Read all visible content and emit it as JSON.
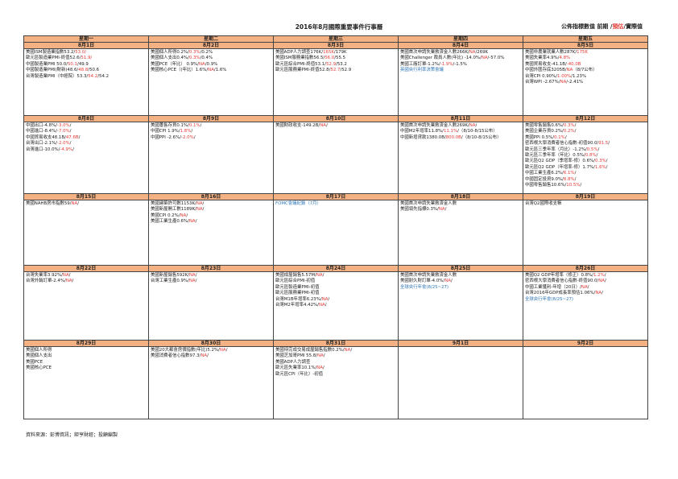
{
  "title": "2016年8月國際重要事件行事曆",
  "legend": {
    "prefix": "公佈指標數值 前期 /",
    "predicted": "預估",
    "suffix": "/實際值"
  },
  "weekdays": [
    "星期一",
    "星期二",
    "星期三",
    "星期四",
    "星期五"
  ],
  "weeks": [
    [
      {
        "date": "8月1日",
        "lines": [
          [
            [
              "美國ISM製造業指數53.2/",
              ""
            ],
            [
              "53.0/",
              "red"
            ]
          ],
          [
            [
              "歐元區製造業PMI-終值52.6/",
              ""
            ],
            [
              "51.9/",
              "red"
            ]
          ],
          [
            [
              "中國製造業PMI 50.0/",
              ""
            ],
            [
              "50.1",
              "red"
            ],
            [
              "/49.9",
              ""
            ]
          ],
          [
            [
              "中國製造業PMI(財新)48.6/",
              ""
            ],
            [
              "48.8",
              "red"
            ],
            [
              "/50.6",
              ""
            ]
          ],
          [
            [
              "台灣製造業PMI（中經院）53.3/",
              ""
            ],
            [
              "54.2",
              "red"
            ],
            [
              "/54.2",
              ""
            ]
          ]
        ]
      },
      {
        "date": "8月2日",
        "lines": [
          [
            [
              "美國個人所得0.2%/",
              ""
            ],
            [
              "0.3%",
              "red"
            ],
            [
              "/0.2%",
              ""
            ]
          ],
          [
            [
              "美國個人支出0.4%/",
              ""
            ],
            [
              "0.3%",
              "red"
            ],
            [
              "/0.4%",
              ""
            ]
          ],
          [
            [
              "美國PCE（年比） 0.9%/",
              ""
            ],
            [
              "NA",
              "red"
            ],
            [
              "/0.9%",
              ""
            ]
          ],
          [
            [
              "美國核心PCE（(年比）1.6%/",
              ""
            ],
            [
              "NA",
              "red"
            ],
            [
              "/1.6%",
              ""
            ]
          ]
        ]
      },
      {
        "date": "8月3日",
        "lines": [
          [
            [
              "美國ADP人力調查176K/",
              ""
            ],
            [
              "165K",
              "red"
            ],
            [
              "/179K",
              ""
            ]
          ],
          [
            [
              "美國ISM服務業指數56.5/",
              ""
            ],
            [
              "56.0",
              "red"
            ],
            [
              "/55.5",
              ""
            ]
          ],
          [
            [
              "歐元區綜合PMI-終值53.1/",
              ""
            ],
            [
              "52.9",
              "red"
            ],
            [
              "/53.2",
              ""
            ]
          ],
          [
            [
              "歐元區服務業PMI-終值52.8/",
              ""
            ],
            [
              "52.7",
              "red"
            ],
            [
              "/52.9",
              ""
            ]
          ]
        ]
      },
      {
        "date": "8月4日",
        "lines": [
          [
            [
              "美國首次申請失業救濟金人數266K/",
              ""
            ],
            [
              "NA",
              "red"
            ],
            [
              "/269K",
              ""
            ]
          ],
          [
            [
              "美國Challenger 裁員人數(年比) -14.0%/",
              ""
            ],
            [
              "NA",
              "red"
            ],
            [
              "/-57.0%",
              ""
            ]
          ],
          [
            [
              "美國工廠訂單-1.2%/",
              ""
            ],
            [
              "-1.9%",
              "red"
            ],
            [
              "/-1.5%",
              ""
            ]
          ],
          [
            [
              "英國央行利率決策會議",
              "blue"
            ]
          ]
        ]
      },
      {
        "date": "8月5日",
        "lines": [
          [
            [
              "美國非農業就業人數287K/",
              ""
            ],
            [
              "175K",
              "red"
            ]
          ],
          [
            [
              "美國失業率4.9%/",
              ""
            ],
            [
              "4.8%",
              "red"
            ]
          ],
          [
            [
              "美國貿易收支-41.1B/",
              ""
            ],
            [
              "-40.0B",
              "red"
            ]
          ],
          [
            [
              "中國外匯存底3205B/",
              ""
            ],
            [
              "NA",
              "red"
            ],
            [
              "（8/7公布）",
              ""
            ]
          ],
          [
            [
              "台灣CPI 0.90%/",
              ""
            ],
            [
              "1.00%",
              "red"
            ],
            [
              "/1.23%",
              ""
            ]
          ],
          [
            [
              "台灣WPI -2.67%/",
              ""
            ],
            [
              "NA",
              "red"
            ],
            [
              "/-2.41%",
              ""
            ]
          ]
        ]
      }
    ],
    [
      {
        "date": "8月8日",
        "lines": [
          [
            [
              "中國出口-4.8%/",
              ""
            ],
            [
              "-3.0%",
              "red"
            ],
            [
              "/",
              ""
            ]
          ],
          [
            [
              "中國進口-8.4%/",
              ""
            ],
            [
              "-7.0%",
              "red"
            ],
            [
              "/",
              ""
            ]
          ],
          [
            [
              "中國貿易收支48.1B/",
              ""
            ],
            [
              "47.6B",
              "red"
            ],
            [
              "/",
              ""
            ]
          ],
          [
            [
              "台灣出口-2.1%/",
              ""
            ],
            [
              "-2.0%",
              "red"
            ],
            [
              "/",
              ""
            ]
          ],
          [
            [
              "台灣進口-10.0%/",
              ""
            ],
            [
              "-4.9%",
              "red"
            ],
            [
              "/",
              ""
            ]
          ]
        ]
      },
      {
        "date": "8月9日",
        "lines": [
          [
            [
              "美國躉售存貨0.1%/",
              ""
            ],
            [
              "0.1%",
              "red"
            ],
            [
              "/",
              ""
            ]
          ],
          [
            [
              "中國CPI 1.9%/",
              ""
            ],
            [
              "1.8%",
              "red"
            ],
            [
              "/",
              ""
            ]
          ],
          [
            [
              "中國PPI -2.6%/",
              ""
            ],
            [
              "-2.0%",
              "red"
            ],
            [
              "/",
              ""
            ]
          ]
        ]
      },
      {
        "date": "8月10日",
        "lines": [
          [
            [
              "美國財政收支-149.2B/",
              ""
            ],
            [
              "NA",
              "red"
            ],
            [
              "/",
              ""
            ]
          ]
        ]
      },
      {
        "date": "8月11日",
        "lines": [
          [
            [
              "美國首次申請失業救濟金人數269K/",
              ""
            ],
            [
              "NA",
              "red"
            ],
            [
              "/",
              ""
            ]
          ],
          [
            [
              "中國M2年增率11.8%/",
              ""
            ],
            [
              "11.1%",
              "red"
            ],
            [
              "/（8/10-8/15公布）",
              ""
            ]
          ],
          [
            [
              "中國新增貸款1380.0B/",
              ""
            ],
            [
              "800.0B",
              "red"
            ],
            [
              "/（8/10-8/15公布）",
              ""
            ]
          ]
        ]
      },
      {
        "date": "8月12日",
        "lines": [
          [
            [
              "美國零售銷售0.6%/",
              ""
            ],
            [
              "0.3%",
              "red"
            ],
            [
              "/",
              ""
            ]
          ],
          [
            [
              "美國企業存貨0.2%/",
              ""
            ],
            [
              "0.2%",
              "red"
            ],
            [
              "/",
              ""
            ]
          ],
          [
            [
              "美國PPI 0.5%/",
              ""
            ],
            [
              "0.1%",
              "red"
            ],
            [
              "/",
              ""
            ]
          ],
          [
            [
              "密西根大學消費者信心指數-初值90.0/",
              ""
            ],
            [
              "91.5",
              "red"
            ],
            [
              "/",
              ""
            ]
          ],
          [
            [
              "歐元區三季年率（月比）-1.2%/",
              ""
            ],
            [
              "0.5%",
              "red"
            ],
            [
              "/",
              ""
            ]
          ],
          [
            [
              "歐元區三季年率（年比）0.5%/",
              ""
            ],
            [
              "0.8%",
              "red"
            ],
            [
              "/",
              ""
            ]
          ],
          [
            [
              "歐元區Q2 GDP（季增率-修）0.6%/",
              ""
            ],
            [
              "0.3%",
              "red"
            ],
            [
              "/",
              ""
            ]
          ],
          [
            [
              "歐元區Q2 GDP（年增率-修）1.7%/",
              ""
            ],
            [
              "1.6%",
              "red"
            ],
            [
              "/",
              ""
            ]
          ],
          [
            [
              "中國工業生產6.2%/",
              ""
            ],
            [
              "6.1%",
              "red"
            ],
            [
              "/",
              ""
            ]
          ],
          [
            [
              "中國固定投資9.0%/",
              ""
            ],
            [
              "8.8%",
              "red"
            ],
            [
              "/",
              ""
            ]
          ],
          [
            [
              "中國零售銷售10.6%/",
              ""
            ],
            [
              "10.5%",
              "red"
            ],
            [
              "/",
              ""
            ]
          ]
        ]
      }
    ],
    [
      {
        "date": "8月15日",
        "lines": [
          [
            [
              "美國NAHB房市指數59/",
              ""
            ],
            [
              "NA",
              "red"
            ],
            [
              "/",
              ""
            ]
          ]
        ]
      },
      {
        "date": "8月16日",
        "lines": [
          [
            [
              "美國建築許可數1153K/",
              ""
            ],
            [
              "NA",
              "red"
            ],
            [
              "/",
              ""
            ]
          ],
          [
            [
              "美國新屋開工數1189K/",
              ""
            ],
            [
              "NA",
              "red"
            ],
            [
              "/",
              ""
            ]
          ],
          [
            [
              "美國CPI 0.2%/",
              ""
            ],
            [
              "NA",
              "red"
            ],
            [
              "/",
              ""
            ]
          ],
          [
            [
              "美國工業生產0.6%/",
              ""
            ],
            [
              "NA",
              "red"
            ],
            [
              "/",
              ""
            ]
          ]
        ]
      },
      {
        "date": "8月17日",
        "lines": [
          [
            [
              "FOMC會議紀錄（7月）",
              "blue"
            ]
          ]
        ]
      },
      {
        "date": "8月18日",
        "lines": [
          [
            [
              "美國首次申請失業救濟金人數",
              ""
            ]
          ],
          [
            [
              "美國領先指標0.3%/",
              ""
            ],
            [
              "NA",
              "red"
            ],
            [
              "/",
              ""
            ]
          ]
        ]
      },
      {
        "date": "8月19日",
        "lines": [
          [
            [
              "台灣Q2國際收支帳",
              ""
            ]
          ]
        ]
      }
    ],
    [
      {
        "date": "8月22日",
        "lines": [
          [
            [
              "台灣失業率3.92%/",
              ""
            ],
            [
              "NA",
              "red"
            ],
            [
              "/",
              ""
            ]
          ],
          [
            [
              "台灣外銷訂單-2.4%/",
              ""
            ],
            [
              "NA",
              "red"
            ],
            [
              "/",
              ""
            ]
          ]
        ]
      },
      {
        "date": "8月23日",
        "lines": [
          [
            [
              "美國新屋銷售592K/",
              ""
            ],
            [
              "NA",
              "red"
            ],
            [
              "/",
              ""
            ]
          ],
          [
            [
              "台灣工業生產0.9%/",
              ""
            ],
            [
              "NA",
              "red"
            ],
            [
              "/",
              ""
            ]
          ]
        ]
      },
      {
        "date": "8月24日",
        "lines": [
          [
            [
              "美國成屋銷售5.57M/",
              ""
            ],
            [
              "NA",
              "red"
            ],
            [
              "/",
              ""
            ]
          ],
          [
            [
              "歐元區綜合PMI-初值",
              ""
            ]
          ],
          [
            [
              "歐元區製造業PMI-初值",
              ""
            ]
          ],
          [
            [
              "歐元區服務業PMI-初值",
              ""
            ]
          ],
          [
            [
              "台灣M1B年增率6.23%/",
              ""
            ],
            [
              "NA",
              "red"
            ],
            [
              "/",
              ""
            ]
          ],
          [
            [
              "台灣M2年增率4.42%/",
              ""
            ],
            [
              "NA",
              "red"
            ],
            [
              "/",
              ""
            ]
          ]
        ]
      },
      {
        "date": "8月25日",
        "lines": [
          [
            [
              "美國首次申請失業救濟金人數",
              ""
            ]
          ],
          [
            [
              "美國耐久財訂單-4.0%/",
              ""
            ],
            [
              "NA",
              "red"
            ],
            [
              "/",
              ""
            ]
          ],
          [
            [
              "全球央行年會(8/25~27)",
              "blue"
            ]
          ]
        ]
      },
      {
        "date": "8月26日",
        "lines": [
          [
            [
              "美國Q2 GDP年增率（修正）0.8%/",
              ""
            ],
            [
              "1.2%",
              "red"
            ],
            [
              "/",
              ""
            ]
          ],
          [
            [
              "密西根大學消費者信心指數-終值90.0/",
              ""
            ],
            [
              "NA",
              "red"
            ],
            [
              "/",
              ""
            ]
          ],
          [
            [
              "中國工業獲利-年增（20日）/",
              ""
            ],
            [
              "NA",
              "red"
            ],
            [
              "/",
              ""
            ]
          ],
          [
            [
              "台灣2016年GDP成長率預估1.06%/",
              ""
            ],
            [
              "NA",
              "red"
            ],
            [
              "/",
              ""
            ]
          ],
          [
            [
              "全球央行年會(8/25~27)",
              "blue"
            ]
          ]
        ]
      }
    ],
    [
      {
        "date": "8月29日",
        "lines": [
          [
            [
              "美國個人所得",
              ""
            ]
          ],
          [
            [
              "美國個人支出",
              ""
            ]
          ],
          [
            [
              "美國PCE",
              ""
            ]
          ],
          [
            [
              "美國核心PCE",
              ""
            ]
          ]
        ]
      },
      {
        "date": "8月30日",
        "lines": [
          [
            [
              "美國20大都會房價指數(年比)5.2%/",
              ""
            ],
            [
              "NA",
              "red"
            ],
            [
              "/",
              ""
            ]
          ],
          [
            [
              "美國消費者信心指數97.3/",
              ""
            ],
            [
              "NA",
              "red"
            ],
            [
              "/",
              ""
            ]
          ]
        ]
      },
      {
        "date": "8月31日",
        "lines": [
          [
            [
              "美國待完成交易成屋銷售指數0.2%/",
              ""
            ],
            [
              "NA",
              "red"
            ],
            [
              "/",
              ""
            ]
          ],
          [
            [
              "美國芝加哥PMI 55.8/",
              ""
            ],
            [
              "NA",
              "red"
            ],
            [
              "/",
              ""
            ]
          ],
          [
            [
              "美國ADP人力調查",
              ""
            ]
          ],
          [
            [
              "歐元區失業率10.1%/",
              ""
            ],
            [
              "NA",
              "red"
            ],
            [
              "/",
              ""
            ]
          ],
          [
            [
              "歐元區CPI（年比）-初值",
              ""
            ]
          ]
        ]
      },
      {
        "date": "9月1日",
        "lines": []
      },
      {
        "date": "9月2日",
        "lines": []
      }
    ]
  ],
  "source": "資料來源：彭博資訊；鉅亨財經；投顧編製"
}
